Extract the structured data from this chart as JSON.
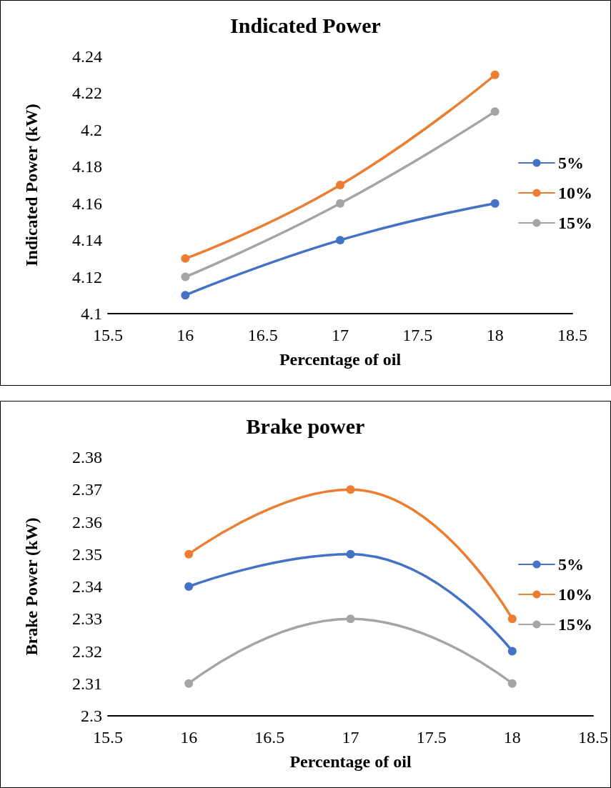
{
  "chart_data": [
    {
      "type": "line",
      "title": "Indicated Power",
      "xlabel": "Percentage of oil",
      "ylabel": "Indicated Power (kW)",
      "x": [
        16,
        17,
        18
      ],
      "xlim": [
        15.5,
        18.5
      ],
      "xticks": [
        15.5,
        16,
        16.5,
        17,
        17.5,
        18,
        18.5
      ],
      "ylim": [
        4.1,
        4.24
      ],
      "yticks": [
        4.1,
        4.12,
        4.14,
        4.16,
        4.18,
        4.2,
        4.22,
        4.24
      ],
      "grid": false,
      "legend": "right",
      "marker": "circle",
      "line_style": "solid",
      "series": [
        {
          "name": "5%",
          "color": "#4472c4",
          "values": [
            4.11,
            4.14,
            4.16
          ]
        },
        {
          "name": "10%",
          "color": "#ed7d31",
          "values": [
            4.13,
            4.17,
            4.23
          ]
        },
        {
          "name": "15%",
          "color": "#a5a5a5",
          "values": [
            4.12,
            4.16,
            4.21
          ]
        }
      ]
    },
    {
      "type": "line",
      "title": "Brake power",
      "xlabel": "Percentage of oil",
      "ylabel": "Brake Power (kW)",
      "x": [
        16,
        17,
        18
      ],
      "xlim": [
        15.5,
        18.5
      ],
      "xticks": [
        15.5,
        16,
        16.5,
        17,
        17.5,
        18,
        18.5
      ],
      "ylim": [
        2.3,
        2.38
      ],
      "yticks": [
        2.3,
        2.31,
        2.32,
        2.33,
        2.34,
        2.35,
        2.36,
        2.37,
        2.38
      ],
      "grid": false,
      "legend": "right",
      "marker": "circle",
      "line_style": "solid",
      "series": [
        {
          "name": "5%",
          "color": "#4472c4",
          "values": [
            2.34,
            2.35,
            2.32
          ]
        },
        {
          "name": "10%",
          "color": "#ed7d31",
          "values": [
            2.35,
            2.37,
            2.33
          ]
        },
        {
          "name": "15%",
          "color": "#a5a5a5",
          "values": [
            2.31,
            2.33,
            2.31
          ]
        }
      ]
    }
  ]
}
